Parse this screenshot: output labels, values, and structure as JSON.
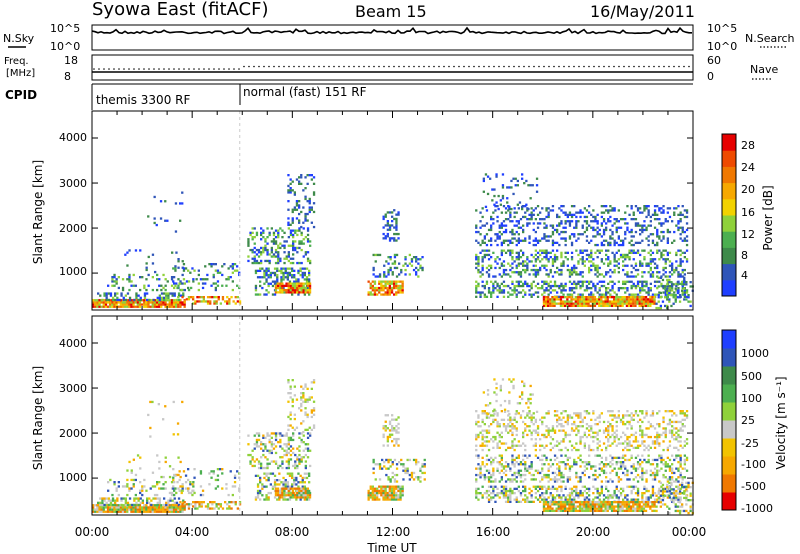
{
  "header": {
    "title": "Syowa East (fitACF)",
    "beam": "Beam 15",
    "date": "16/May/2011"
  },
  "noise_panel": {
    "left_label": "N.Sky",
    "right_label": "N.Search",
    "left_ticks": [
      "10^5",
      "10^0"
    ],
    "right_ticks": [
      "10^5",
      "10^0"
    ]
  },
  "freq_panel": {
    "left_label_1": "Freq.",
    "left_label_2": "[MHz]",
    "right_label": "Nave",
    "left_ticks": [
      "18",
      "8"
    ],
    "right_ticks": [
      "60",
      "0"
    ]
  },
  "cpid_panel": {
    "label": "CPID",
    "modes": [
      "themis 3300 RF",
      "normal (fast) 151 RF"
    ]
  },
  "chart_data": [
    {
      "type": "heatmap",
      "title": "Power",
      "xlabel": "Time UT",
      "ylabel": "Slant Range [km]",
      "x_ticks": [
        "00:00",
        "04:00",
        "08:00",
        "12:00",
        "16:00",
        "20:00",
        "00:00"
      ],
      "y_ticks": [
        "1000",
        "2000",
        "3000",
        "4000"
      ],
      "ylim": [
        180,
        4600
      ],
      "colorbar_label": "Power [dB]",
      "colorbar_ticks": [
        "4",
        "8",
        "12",
        "16",
        "20",
        "24",
        "28"
      ],
      "colorbar_colors": [
        "#1f3fff",
        "#2f55b8",
        "#3e8a4a",
        "#4caf50",
        "#8fd13a",
        "#f2d200",
        "#f6a800",
        "#f07800",
        "#ee4a00",
        "#e60000"
      ]
    },
    {
      "type": "heatmap",
      "title": "Velocity",
      "xlabel": "Time UT",
      "ylabel": "Slant Range [km]",
      "x_ticks": [
        "00:00",
        "04:00",
        "08:00",
        "12:00",
        "16:00",
        "20:00",
        "00:00"
      ],
      "y_ticks": [
        "1000",
        "2000",
        "3000",
        "4000"
      ],
      "ylim": [
        180,
        4600
      ],
      "colorbar_label": "Velocity [m s⁻¹]",
      "colorbar_ticks": [
        "1000",
        "500",
        "100",
        "25",
        "-25",
        "-100",
        "-500",
        "-1000"
      ],
      "colorbar_colors": [
        "#1f3fff",
        "#2f55b8",
        "#3e8a4a",
        "#4caf50",
        "#8fd13a",
        "#c8c8c8",
        "#f2c300",
        "#f6a800",
        "#f07800",
        "#e60000"
      ]
    }
  ]
}
